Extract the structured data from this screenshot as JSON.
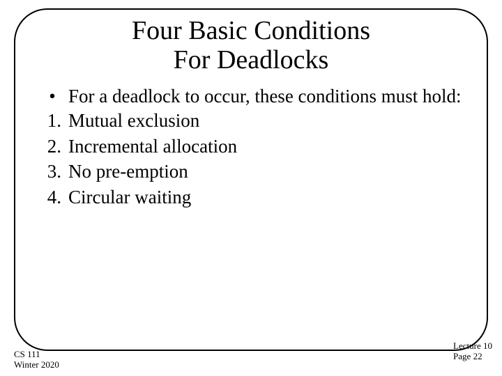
{
  "title_line1": "Four Basic Conditions",
  "title_line2": "For Deadlocks",
  "intro": "For a deadlock to occur, these conditions must hold:",
  "items": {
    "0": {
      "num": "1.",
      "text": "Mutual exclusion"
    },
    "1": {
      "num": "2.",
      "text": "Incremental allocation"
    },
    "2": {
      "num": "3.",
      "text": "No pre-emption"
    },
    "3": {
      "num": "4.",
      "text": "Circular waiting"
    }
  },
  "footer": {
    "course": "CS 111",
    "term": "Winter 2020",
    "lecture": "Lecture 10",
    "page": "Page 22"
  },
  "colors": {
    "background": "#ffffff",
    "text": "#000000",
    "border": "#000000"
  }
}
